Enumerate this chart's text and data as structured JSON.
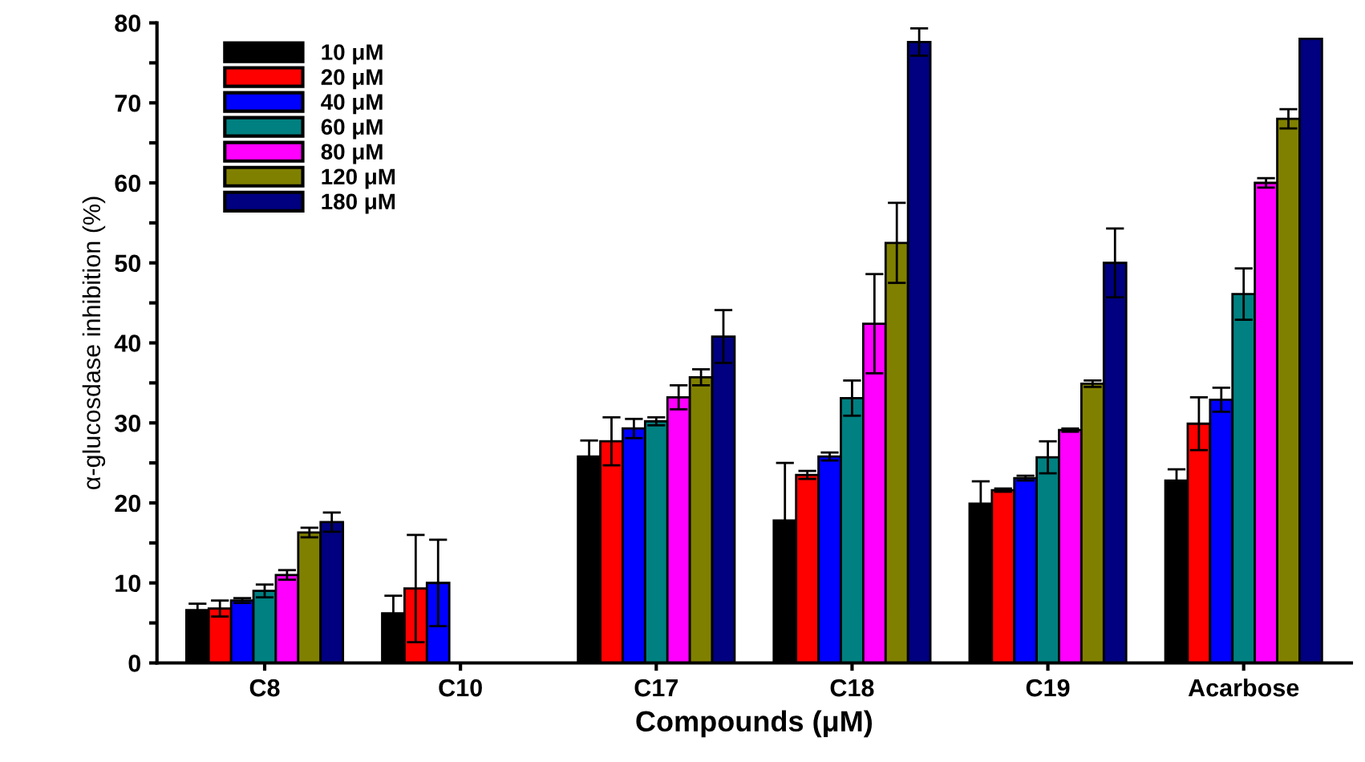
{
  "chart_data": {
    "type": "bar",
    "xlabel": "Compounds (μM)",
    "ylabel": "α-glucosdase inhibition (%)",
    "categories": [
      "C8",
      "C10",
      "C17",
      "C18",
      "C19",
      "Acarbose"
    ],
    "series": [
      {
        "name": "10 μM",
        "color": "#000000",
        "values": [
          6.6,
          6.2,
          25.8,
          17.8,
          19.9,
          22.8
        ],
        "errors": [
          0.8,
          2.2,
          2.0,
          7.2,
          2.8,
          1.4
        ]
      },
      {
        "name": "20 μM",
        "color": "#ff0000",
        "values": [
          6.8,
          9.3,
          27.7,
          23.5,
          21.6,
          29.9
        ],
        "errors": [
          1.0,
          6.7,
          3.0,
          0.5,
          0.2,
          3.3
        ]
      },
      {
        "name": "40 μM",
        "color": "#0000ff",
        "values": [
          7.8,
          10.0,
          29.3,
          25.8,
          23.1,
          32.9
        ],
        "errors": [
          0.3,
          5.4,
          1.2,
          0.5,
          0.3,
          1.5
        ]
      },
      {
        "name": "60 μM",
        "color": "#008080",
        "values": [
          9.0,
          null,
          30.2,
          33.1,
          25.7,
          46.1
        ],
        "errors": [
          0.8,
          null,
          0.5,
          2.2,
          2.0,
          3.2
        ]
      },
      {
        "name": "80 μM",
        "color": "#ff00ff",
        "values": [
          11.0,
          null,
          33.2,
          42.4,
          29.1,
          60.0
        ],
        "errors": [
          0.6,
          null,
          1.5,
          6.2,
          0.2,
          0.6
        ]
      },
      {
        "name": "120 μM",
        "color": "#808000",
        "values": [
          16.3,
          null,
          35.7,
          52.5,
          34.9,
          68.0
        ],
        "errors": [
          0.6,
          null,
          1.0,
          5.0,
          0.4,
          1.2
        ]
      },
      {
        "name": "180 μM",
        "color": "#000080",
        "values": [
          17.6,
          null,
          40.8,
          77.6,
          50.0,
          78.0
        ],
        "errors": [
          1.2,
          null,
          3.3,
          1.7,
          4.3,
          null
        ]
      }
    ],
    "ylim": [
      0,
      80
    ],
    "yticks": [
      0,
      {
        "value": 5,
        "label": null
      },
      10,
      {
        "value": 15,
        "label": null
      },
      20,
      {
        "value": 25,
        "label": null
      },
      30,
      {
        "value": 35,
        "label": null
      },
      40,
      {
        "value": 45,
        "label": null
      },
      50,
      {
        "value": 55,
        "label": null
      },
      60,
      {
        "value": 65,
        "label": null
      },
      70,
      {
        "value": 75,
        "label": null
      },
      80
    ],
    "grid": false,
    "legend": "top left"
  }
}
